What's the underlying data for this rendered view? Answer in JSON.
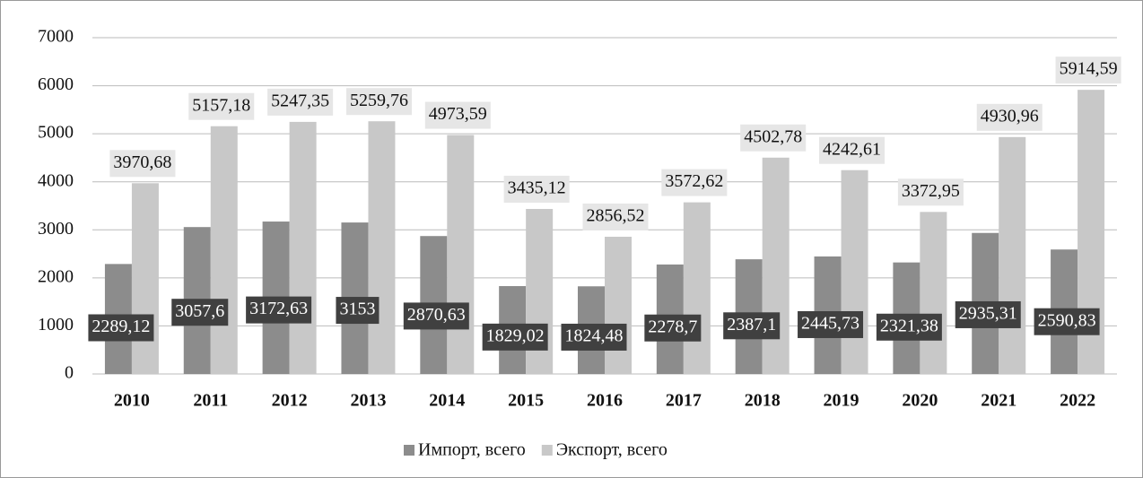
{
  "chart_data": {
    "type": "bar",
    "categories": [
      "2010",
      "2011",
      "2012",
      "2013",
      "2014",
      "2015",
      "2016",
      "2017",
      "2018",
      "2019",
      "2020",
      "2021",
      "2022"
    ],
    "series": [
      {
        "name": "Импорт, всего",
        "color": "#8c8c8c",
        "values": [
          2289.12,
          3057.6,
          3172.63,
          3153,
          2870.63,
          1829.02,
          1824.48,
          2278.7,
          2387.1,
          2445.73,
          2321.38,
          2935.31,
          2590.83
        ],
        "value_labels": [
          "2289,12",
          "3057,6",
          "3172,63",
          "3153",
          "2870,63",
          "1829,02",
          "1824,48",
          "2278,7",
          "2387,1",
          "2445,73",
          "2321,38",
          "2935,31",
          "2590,83"
        ]
      },
      {
        "name": "Экспорт, всего",
        "color": "#c8c8c8",
        "values": [
          3970.68,
          5157.18,
          5247.35,
          5259.76,
          4973.59,
          3435.12,
          2856.52,
          3572.62,
          4502.78,
          4242.61,
          3372.95,
          4930.96,
          5914.59
        ],
        "value_labels": [
          "3970,68",
          "5157,18",
          "5247,35",
          "5259,76",
          "4973,59",
          "3435,12",
          "2856,52",
          "3572,62",
          "4502,78",
          "4242,61",
          "3372,95",
          "4930,96",
          "5914,59"
        ]
      }
    ],
    "ylim": [
      0,
      7000
    ],
    "yticks": [
      0,
      1000,
      2000,
      3000,
      4000,
      5000,
      6000,
      7000
    ],
    "grid": true,
    "legend": "bottom"
  }
}
